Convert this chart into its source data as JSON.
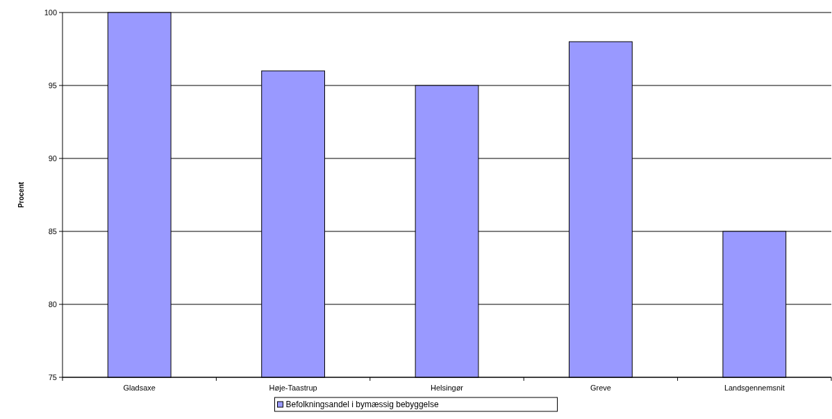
{
  "chart_data": {
    "type": "bar",
    "ylabel": "Procent",
    "categories": [
      "Gladsaxe",
      "Høje-Taastrup",
      "Helsingør",
      "Greve",
      "Landsgennemsnit"
    ],
    "series": [
      {
        "name": "Befolkningsandel i bymæssig bebyggelse",
        "color": "#9999ff",
        "values": [
          100,
          96,
          95,
          98,
          85
        ]
      }
    ],
    "ylim": [
      75,
      100
    ],
    "yticks": [
      75,
      80,
      85,
      90,
      95,
      100
    ],
    "grid": "y",
    "legend": "bottom"
  }
}
